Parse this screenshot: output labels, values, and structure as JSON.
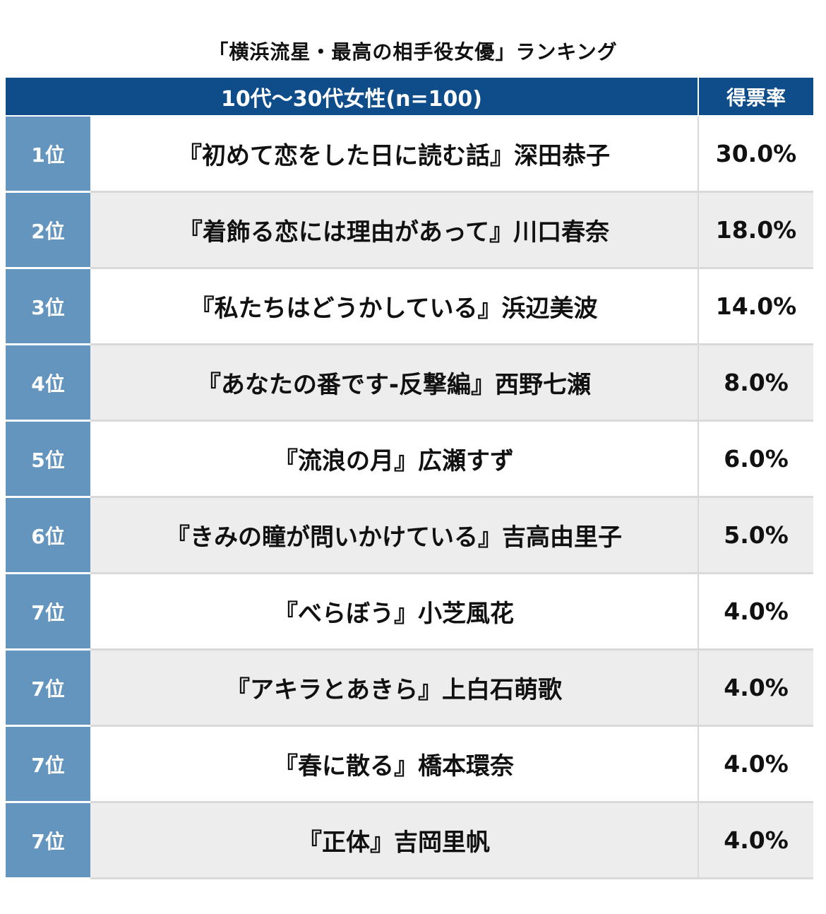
{
  "chart_data": {
    "type": "table",
    "title": "「横浜流星・最高の相手役女優」ランキング",
    "group_header": "10代〜30代女性(n=100)",
    "rate_header": "得票率",
    "rows": [
      {
        "rank": "1位",
        "item": "『初めて恋をした日に読む話』深田恭子",
        "rate": "30.0%",
        "value": 30.0
      },
      {
        "rank": "2位",
        "item": "『着飾る恋には理由があって』川口春奈",
        "rate": "18.0%",
        "value": 18.0
      },
      {
        "rank": "3位",
        "item": "『私たちはどうかしている』浜辺美波",
        "rate": "14.0%",
        "value": 14.0
      },
      {
        "rank": "4位",
        "item": "『あなたの番です-反撃編』西野七瀬",
        "rate": "8.0%",
        "value": 8.0
      },
      {
        "rank": "5位",
        "item": "『流浪の月』広瀬すず",
        "rate": "6.0%",
        "value": 6.0
      },
      {
        "rank": "6位",
        "item": "『きみの瞳が問いかけている』吉高由里子",
        "rate": "5.0%",
        "value": 5.0
      },
      {
        "rank": "7位",
        "item": "『べらぼう』小芝風花",
        "rate": "4.0%",
        "value": 4.0
      },
      {
        "rank": "7位",
        "item": "『アキラとあきら』上白石萌歌",
        "rate": "4.0%",
        "value": 4.0
      },
      {
        "rank": "7位",
        "item": "『春に散る』橋本環奈",
        "rate": "4.0%",
        "value": 4.0
      },
      {
        "rank": "7位",
        "item": "『正体』吉岡里帆",
        "rate": "4.0%",
        "value": 4.0
      }
    ]
  },
  "colors": {
    "header_bg": "#0f4d8a",
    "rank_bg": "#6495bf",
    "row_alt_bg": "#ededed"
  }
}
